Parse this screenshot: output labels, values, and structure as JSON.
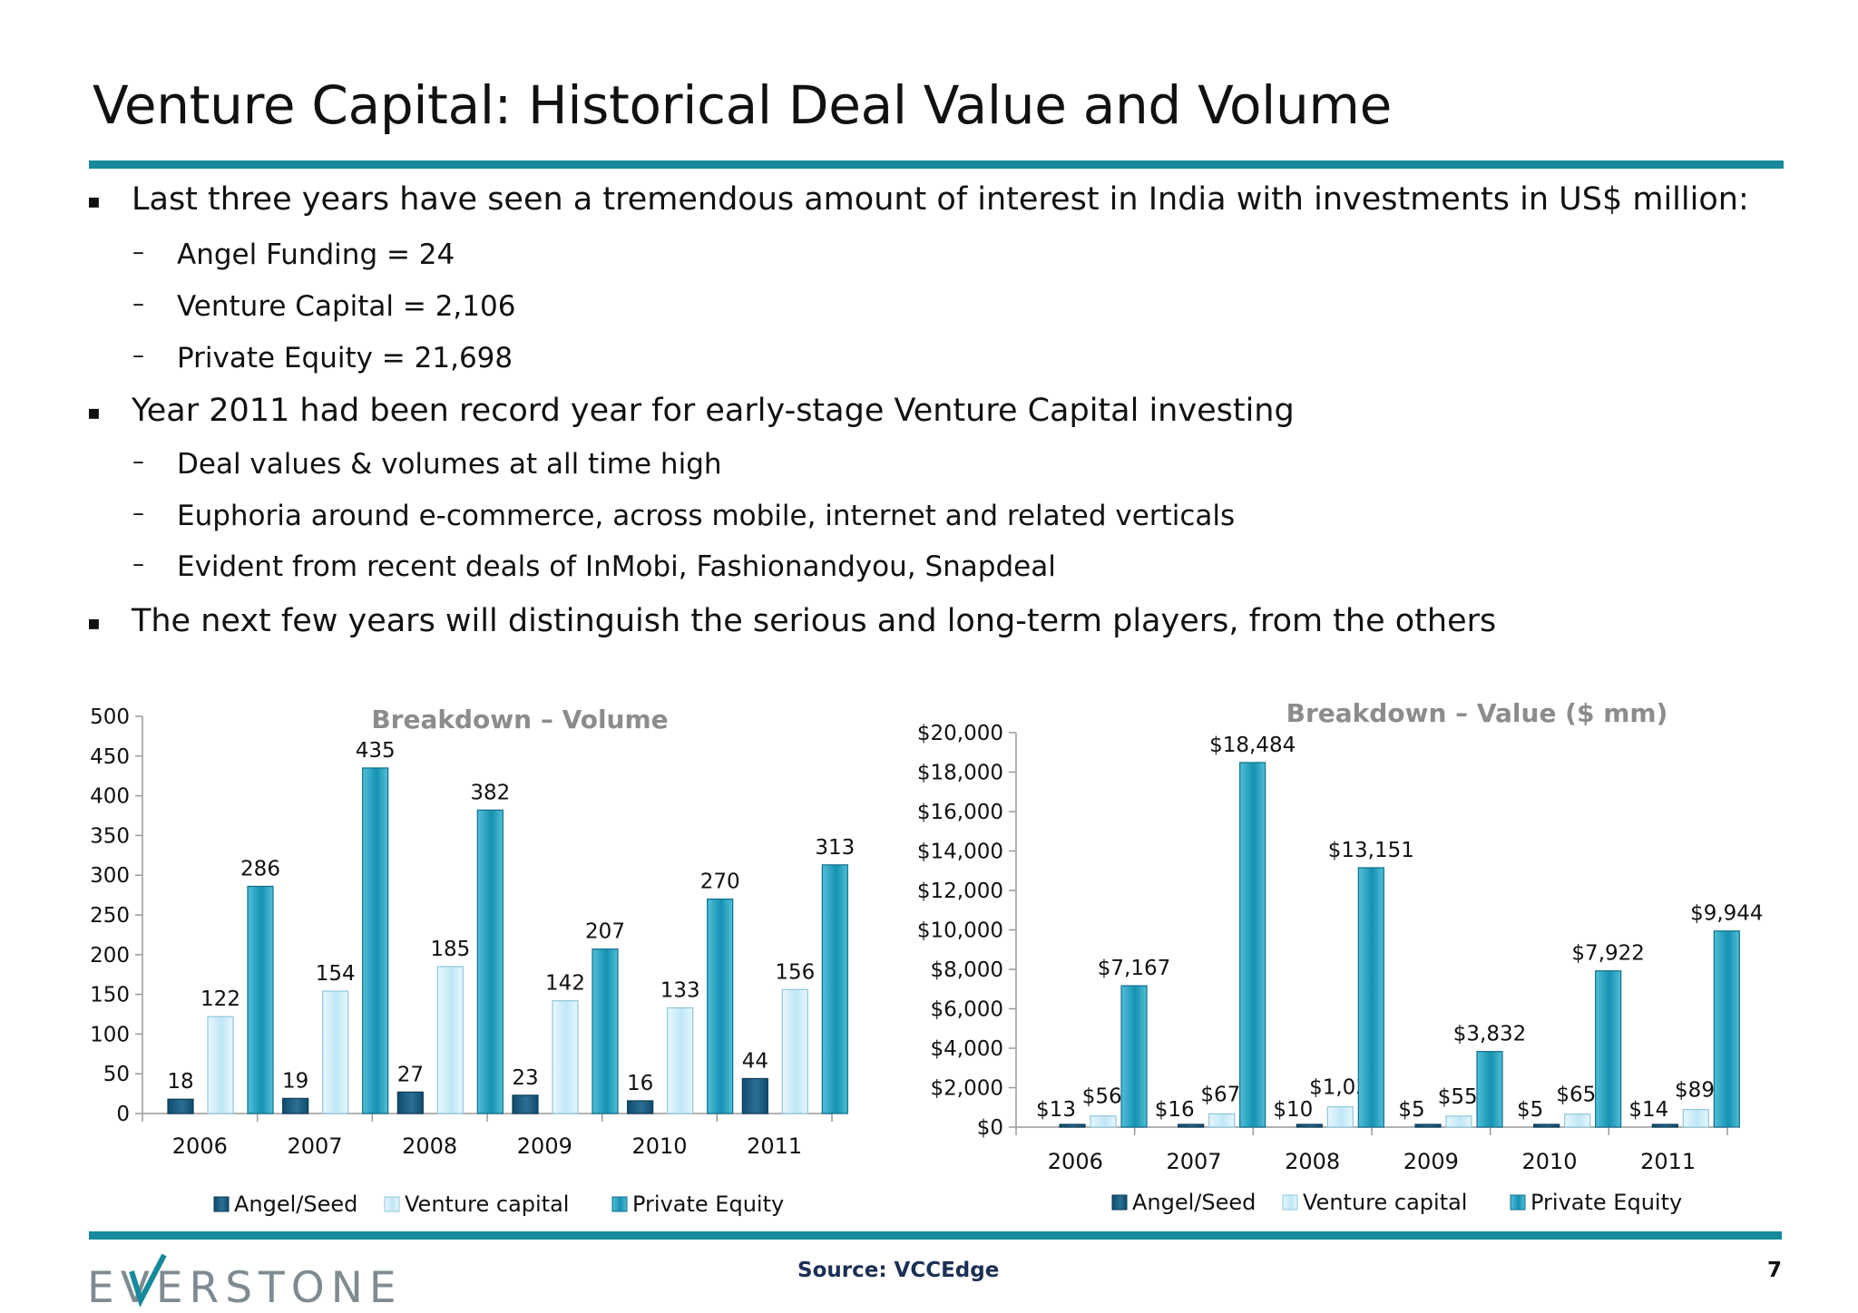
{
  "page": {
    "title": "Venture Capital: Historical Deal Value and Volume",
    "source": "Source: VCCEdge",
    "page_number": "7",
    "logo_text": "EVERSTONE"
  },
  "bullets": [
    {
      "level": 1,
      "marker": "▪",
      "text": "Last three years have seen a tremendous amount of interest in India with investments in US$ million:"
    },
    {
      "level": 2,
      "marker": "–",
      "text": "Angel Funding = 24"
    },
    {
      "level": 2,
      "marker": "–",
      "text": "Venture Capital = 2,106"
    },
    {
      "level": 2,
      "marker": "–",
      "text": "Private Equity = 21,698"
    },
    {
      "level": 1,
      "marker": "▪",
      "text": "Year 2011 had been record year for early-stage Venture Capital investing"
    },
    {
      "level": 2,
      "marker": "–",
      "text": "Deal values & volumes at all time high"
    },
    {
      "level": 2,
      "marker": "–",
      "text": "Euphoria around e-commerce, across mobile, internet and related verticals"
    },
    {
      "level": 2,
      "marker": "–",
      "text": "Evident from recent deals of InMobi, Fashionandyou, Snapdeal"
    },
    {
      "level": 1,
      "marker": "▪",
      "text": "The next few years will distinguish the serious and long-term players, from the others"
    }
  ],
  "colors": {
    "accent": "#168a9c",
    "angel": "#0f4c6e",
    "venture": "#bfe7f6",
    "pe": "#1591b2",
    "chart_title": "#8c8c8c"
  },
  "chart_data": [
    {
      "type": "bar",
      "title": "Breakdown – Volume",
      "categories": [
        "2006",
        "2007",
        "2008",
        "2009",
        "2010",
        "2011"
      ],
      "series": [
        {
          "name": "Angel/Seed",
          "values": [
            18,
            19,
            27,
            23,
            16,
            44
          ],
          "labels": [
            "18",
            "19",
            "27",
            "23",
            "16",
            "44"
          ]
        },
        {
          "name": "Venture capital",
          "values": [
            122,
            154,
            185,
            142,
            133,
            156
          ],
          "labels": [
            "122",
            "154",
            "185",
            "142",
            "133",
            "156"
          ]
        },
        {
          "name": "Private Equity",
          "values": [
            286,
            435,
            382,
            207,
            270,
            313
          ],
          "labels": [
            "286",
            "435",
            "382",
            "207",
            "270",
            "313"
          ]
        }
      ],
      "ylim": [
        0,
        500
      ],
      "yticks": [
        0,
        50,
        100,
        150,
        200,
        250,
        300,
        350,
        400,
        450,
        500
      ],
      "ytick_labels": [
        "0",
        "50",
        "100",
        "150",
        "200",
        "250",
        "300",
        "350",
        "400",
        "450",
        "500"
      ],
      "legend": "bottom"
    },
    {
      "type": "bar",
      "title": "Breakdown – Value ($ mm)",
      "categories": [
        "2006",
        "2007",
        "2008",
        "2009",
        "2010",
        "2011"
      ],
      "series": [
        {
          "name": "Angel/Seed",
          "values": [
            13,
            16,
            10,
            5,
            5,
            14
          ],
          "labels": [
            "$13",
            "$16",
            "$10",
            "$5",
            "$5",
            "$14"
          ]
        },
        {
          "name": "Venture capital",
          "values": [
            564,
            670,
            1034,
            556,
            659,
            891
          ],
          "labels": [
            "$564",
            "$670",
            "$1,034",
            "$556",
            "$659",
            "$891"
          ]
        },
        {
          "name": "Private Equity",
          "values": [
            7167,
            18484,
            13151,
            3832,
            7922,
            9944
          ],
          "labels": [
            "$7,167",
            "$18,484",
            "$13,151",
            "$3,832",
            "$7,922",
            "$9,944"
          ]
        }
      ],
      "ylim": [
        0,
        20000
      ],
      "yticks": [
        0,
        2000,
        4000,
        6000,
        8000,
        10000,
        12000,
        14000,
        16000,
        18000,
        20000
      ],
      "ytick_labels": [
        "$0",
        "$2,000",
        "$4,000",
        "$6,000",
        "$8,000",
        "$10,000",
        "$12,000",
        "$14,000",
        "$16,000",
        "$18,000",
        "$20,000"
      ],
      "legend": "bottom"
    }
  ]
}
